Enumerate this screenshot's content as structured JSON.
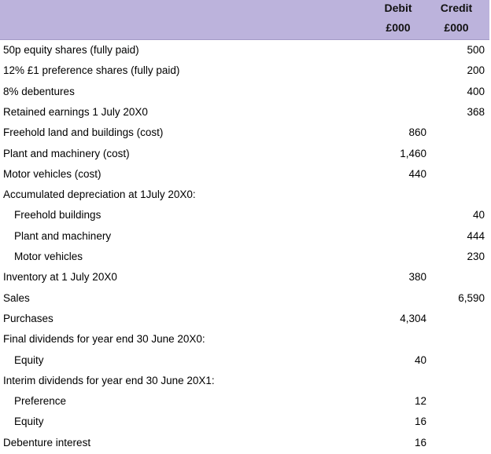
{
  "header": {
    "debit_line1": "Debit",
    "debit_line2": "£000",
    "credit_line1": "Credit",
    "credit_line2": "£000",
    "background_color": "#bcb3dc"
  },
  "rows": [
    {
      "label": "50p equity shares (fully paid)",
      "debit": "",
      "credit": "500",
      "indent": false
    },
    {
      "label": "12% £1 preference shares (fully paid)",
      "debit": "",
      "credit": "200",
      "indent": false
    },
    {
      "label": "8% debentures",
      "debit": "",
      "credit": "400",
      "indent": false
    },
    {
      "label": "Retained earnings 1 July 20X0",
      "debit": "",
      "credit": "368",
      "indent": false
    },
    {
      "label": "Freehold land and buildings (cost)",
      "debit": "860",
      "credit": "",
      "indent": false
    },
    {
      "label": "Plant and machinery (cost)",
      "debit": "1,460",
      "credit": "",
      "indent": false
    },
    {
      "label": "Motor vehicles (cost)",
      "debit": "440",
      "credit": "",
      "indent": false
    },
    {
      "label": "Accumulated depreciation at 1July 20X0:",
      "debit": "",
      "credit": "",
      "indent": false
    },
    {
      "label": "Freehold buildings",
      "debit": "",
      "credit": "40",
      "indent": true
    },
    {
      "label": "Plant and machinery",
      "debit": "",
      "credit": "444",
      "indent": true
    },
    {
      "label": "Motor vehicles",
      "debit": "",
      "credit": "230",
      "indent": true
    },
    {
      "label": "Inventory at 1 July 20X0",
      "debit": "380",
      "credit": "",
      "indent": false
    },
    {
      "label": "Sales",
      "debit": "",
      "credit": "6,590",
      "indent": false
    },
    {
      "label": "Purchases",
      "debit": "4,304",
      "credit": "",
      "indent": false
    },
    {
      "label": "Final dividends for year end 30 June 20X0:",
      "debit": "",
      "credit": "",
      "indent": false
    },
    {
      "label": "Equity",
      "debit": "40",
      "credit": "",
      "indent": true
    },
    {
      "label": "Interim dividends for year end 30 June 20X1:",
      "debit": "",
      "credit": "",
      "indent": false
    },
    {
      "label": "Preference",
      "debit": "12",
      "credit": "",
      "indent": true
    },
    {
      "label": "Equity",
      "debit": "16",
      "credit": "",
      "indent": true
    },
    {
      "label": "Debenture interest",
      "debit": "16",
      "credit": "",
      "indent": false
    }
  ]
}
